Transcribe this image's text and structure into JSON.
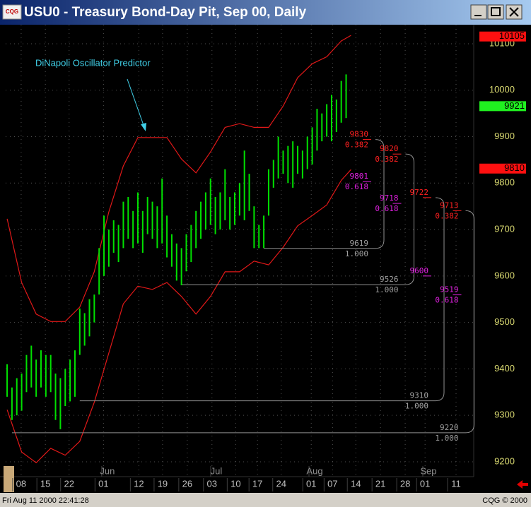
{
  "window": {
    "logo": "CQG",
    "title": "USU0 - Treasury Bond-Day Pit, Sep 00, Daily",
    "status_left": "Fri Aug 11 2000 22:41:28",
    "status_right": "CQG © 2000"
  },
  "chart_data": {
    "type": "ohlc",
    "annotation": "DiNapoli Oscillator Predictor",
    "color": "#00e000",
    "x": [
      0,
      1,
      2,
      3,
      4,
      5,
      6,
      7,
      8,
      9,
      10,
      11,
      12,
      13,
      14,
      15,
      16,
      17,
      18,
      19,
      20,
      21,
      22,
      23,
      24,
      25,
      26,
      27,
      28,
      29,
      30,
      31,
      32,
      33,
      34,
      35,
      36,
      37,
      38,
      39,
      40,
      41,
      42,
      43,
      44,
      45,
      46,
      47,
      48,
      49,
      50,
      51,
      52,
      53,
      54,
      55,
      56,
      57,
      58,
      59,
      60,
      61,
      62,
      63,
      64,
      65,
      66,
      67,
      68,
      69,
      70
    ],
    "highs": [
      94.1,
      93.6,
      93.8,
      93.9,
      94.3,
      94.5,
      94.2,
      94.4,
      94.3,
      94.3,
      93.9,
      93.8,
      94.0,
      94.2,
      94.4,
      95.3,
      95.2,
      95.5,
      95.6,
      96.6,
      97.3,
      97.0,
      97.2,
      97.1,
      97.6,
      97.7,
      97.4,
      97.8,
      97.4,
      97.7,
      97.6,
      97.5,
      98.1,
      97.3,
      96.9,
      96.7,
      96.6,
      96.9,
      97.1,
      97.4,
      97.6,
      97.8,
      98.1,
      97.7,
      97.8,
      98.3,
      97.7,
      97.8,
      98.0,
      98.7,
      98.2,
      97.5,
      97.1,
      97.3,
      98.3,
      98.5,
      99.0,
      98.7,
      98.8,
      98.9,
      98.8,
      98.7,
      99.0,
      99.2,
      99.6,
      99.5,
      99.7,
      99.9,
      99.8,
      100.2,
      100.34
    ],
    "lows": [
      93.4,
      92.9,
      93.0,
      93.1,
      93.5,
      93.6,
      93.4,
      93.6,
      93.4,
      93.5,
      92.9,
      92.7,
      93.2,
      93.3,
      93.4,
      94.3,
      94.5,
      94.7,
      95.0,
      95.6,
      96.0,
      96.2,
      96.5,
      96.3,
      96.6,
      96.8,
      96.6,
      96.7,
      96.5,
      96.9,
      96.8,
      96.6,
      96.7,
      96.4,
      96.2,
      95.9,
      95.8,
      96.1,
      96.3,
      96.6,
      96.8,
      97.0,
      97.1,
      96.9,
      97.0,
      97.2,
      97.0,
      97.1,
      97.3,
      97.2,
      97.4,
      96.6,
      96.6,
      96.6,
      97.3,
      97.9,
      98.1,
      98.2,
      98.0,
      97.9,
      98.2,
      98.1,
      98.3,
      98.4,
      98.7,
      98.9,
      99.0,
      98.9,
      99.1,
      99.3,
      99.4
    ],
    "bands": {
      "color": "#e01818",
      "x": [
        0,
        3,
        6,
        9,
        12,
        15,
        18,
        21,
        24,
        27,
        30,
        33,
        36,
        39,
        42,
        45,
        48,
        51,
        54,
        57,
        60,
        63,
        66,
        69,
        71
      ],
      "upper": [
        97.23,
        95.86,
        95.18,
        95.02,
        95.02,
        95.33,
        96.09,
        97.38,
        98.37,
        98.98,
        98.98,
        98.98,
        98.52,
        98.22,
        98.67,
        99.2,
        99.28,
        99.2,
        99.2,
        99.66,
        100.27,
        100.57,
        100.72,
        101.06,
        101.18
      ],
      "lower": [
        93.12,
        92.21,
        91.98,
        92.29,
        92.14,
        92.44,
        93.28,
        94.34,
        95.4,
        95.78,
        95.71,
        95.86,
        95.56,
        95.18,
        95.56,
        96.09,
        96.09,
        96.32,
        96.24,
        96.62,
        97.08,
        97.3,
        97.53,
        98.06,
        98.29
      ]
    },
    "xlim": [
      -0.3,
      96.35
    ],
    "xticks": [
      {
        "value": 2.9,
        "label": "08"
      },
      {
        "value": 7.9,
        "label": "15"
      },
      {
        "value": 12.8,
        "label": "22"
      },
      {
        "value": 19.9,
        "label": "01"
      },
      {
        "value": 27.2,
        "label": "12"
      },
      {
        "value": 32.1,
        "label": "19"
      },
      {
        "value": 37.2,
        "label": "26"
      },
      {
        "value": 42.3,
        "label": "03"
      },
      {
        "value": 47.2,
        "label": "10"
      },
      {
        "value": 51.7,
        "label": "17"
      },
      {
        "value": 56.6,
        "label": "24"
      },
      {
        "value": 62.8,
        "label": "01"
      },
      {
        "value": 67.2,
        "label": "07"
      },
      {
        "value": 72,
        "label": "14"
      },
      {
        "value": 77.1,
        "label": "21"
      },
      {
        "value": 82.2,
        "label": "28"
      },
      {
        "value": 86.3,
        "label": "01"
      },
      {
        "value": 92.7,
        "label": "11"
      }
    ],
    "month_ticks": [
      {
        "value": 20.7,
        "label": "Jun"
      },
      {
        "value": 43.2,
        "label": "Jul"
      },
      {
        "value": 63.5,
        "label": "Aug"
      },
      {
        "value": 87,
        "label": "Sep"
      }
    ],
    "ylim": [
      91.68,
      101.41
    ],
    "yticks": [
      {
        "value": 92,
        "label": "9200"
      },
      {
        "value": 93,
        "label": "9300"
      },
      {
        "value": 94,
        "label": "9400"
      },
      {
        "value": 95,
        "label": "9500"
      },
      {
        "value": 96,
        "label": "9600"
      },
      {
        "value": 97,
        "label": "9700"
      },
      {
        "value": 98,
        "label": "9800"
      },
      {
        "value": 99,
        "label": "9900"
      },
      {
        "value": 100,
        "label": "10000"
      },
      {
        "value": 101,
        "label": "10100"
      }
    ],
    "grid": true,
    "fib_levels": [
      {
        "value": 98.9375,
        "label": "9830",
        "ratio": "0.382",
        "color": "#ff2020"
      },
      {
        "value": 98.03125,
        "label": "9801",
        "ratio": "0.618",
        "color": "#e020e0"
      },
      {
        "value": 96.59375,
        "label": "9619",
        "ratio": "1.000",
        "color": "#a0a0a0",
        "anchor_x": 53
      },
      {
        "value": 98.625,
        "label": "9820",
        "ratio": "0.382",
        "color": "#ff2020"
      },
      {
        "value": 97.5625,
        "label": "9718",
        "ratio": "0.618",
        "color": "#e020e0"
      },
      {
        "value": 95.8125,
        "label": "9526",
        "ratio": "1.000",
        "color": "#a0a0a0",
        "anchor_x": 36
      },
      {
        "value": 97.6875,
        "label": "9722",
        "color": "#ff2020"
      },
      {
        "value": 96.0,
        "label": "9600",
        "color": "#e020e0"
      },
      {
        "value": 93.3125,
        "label": "9310",
        "ratio": "1.000",
        "color": "#a0a0a0",
        "anchor_x": 15
      },
      {
        "value": 97.40625,
        "label": "9713",
        "ratio": "0.382",
        "color": "#ff2020"
      },
      {
        "value": 95.59375,
        "label": "9519",
        "ratio": "0.618",
        "color": "#e020e0"
      },
      {
        "value": 92.625,
        "label": "9220",
        "ratio": "1.000",
        "color": "#a0a0a0",
        "anchor_x": 1
      }
    ],
    "price_markers": [
      {
        "value": 101.15625,
        "label": "10105",
        "color": "#ff1010"
      },
      {
        "value": 99.65625,
        "label": "9921",
        "color": "#20f020"
      },
      {
        "value": 98.3125,
        "label": "9810",
        "color": "#ff1010"
      }
    ]
  }
}
